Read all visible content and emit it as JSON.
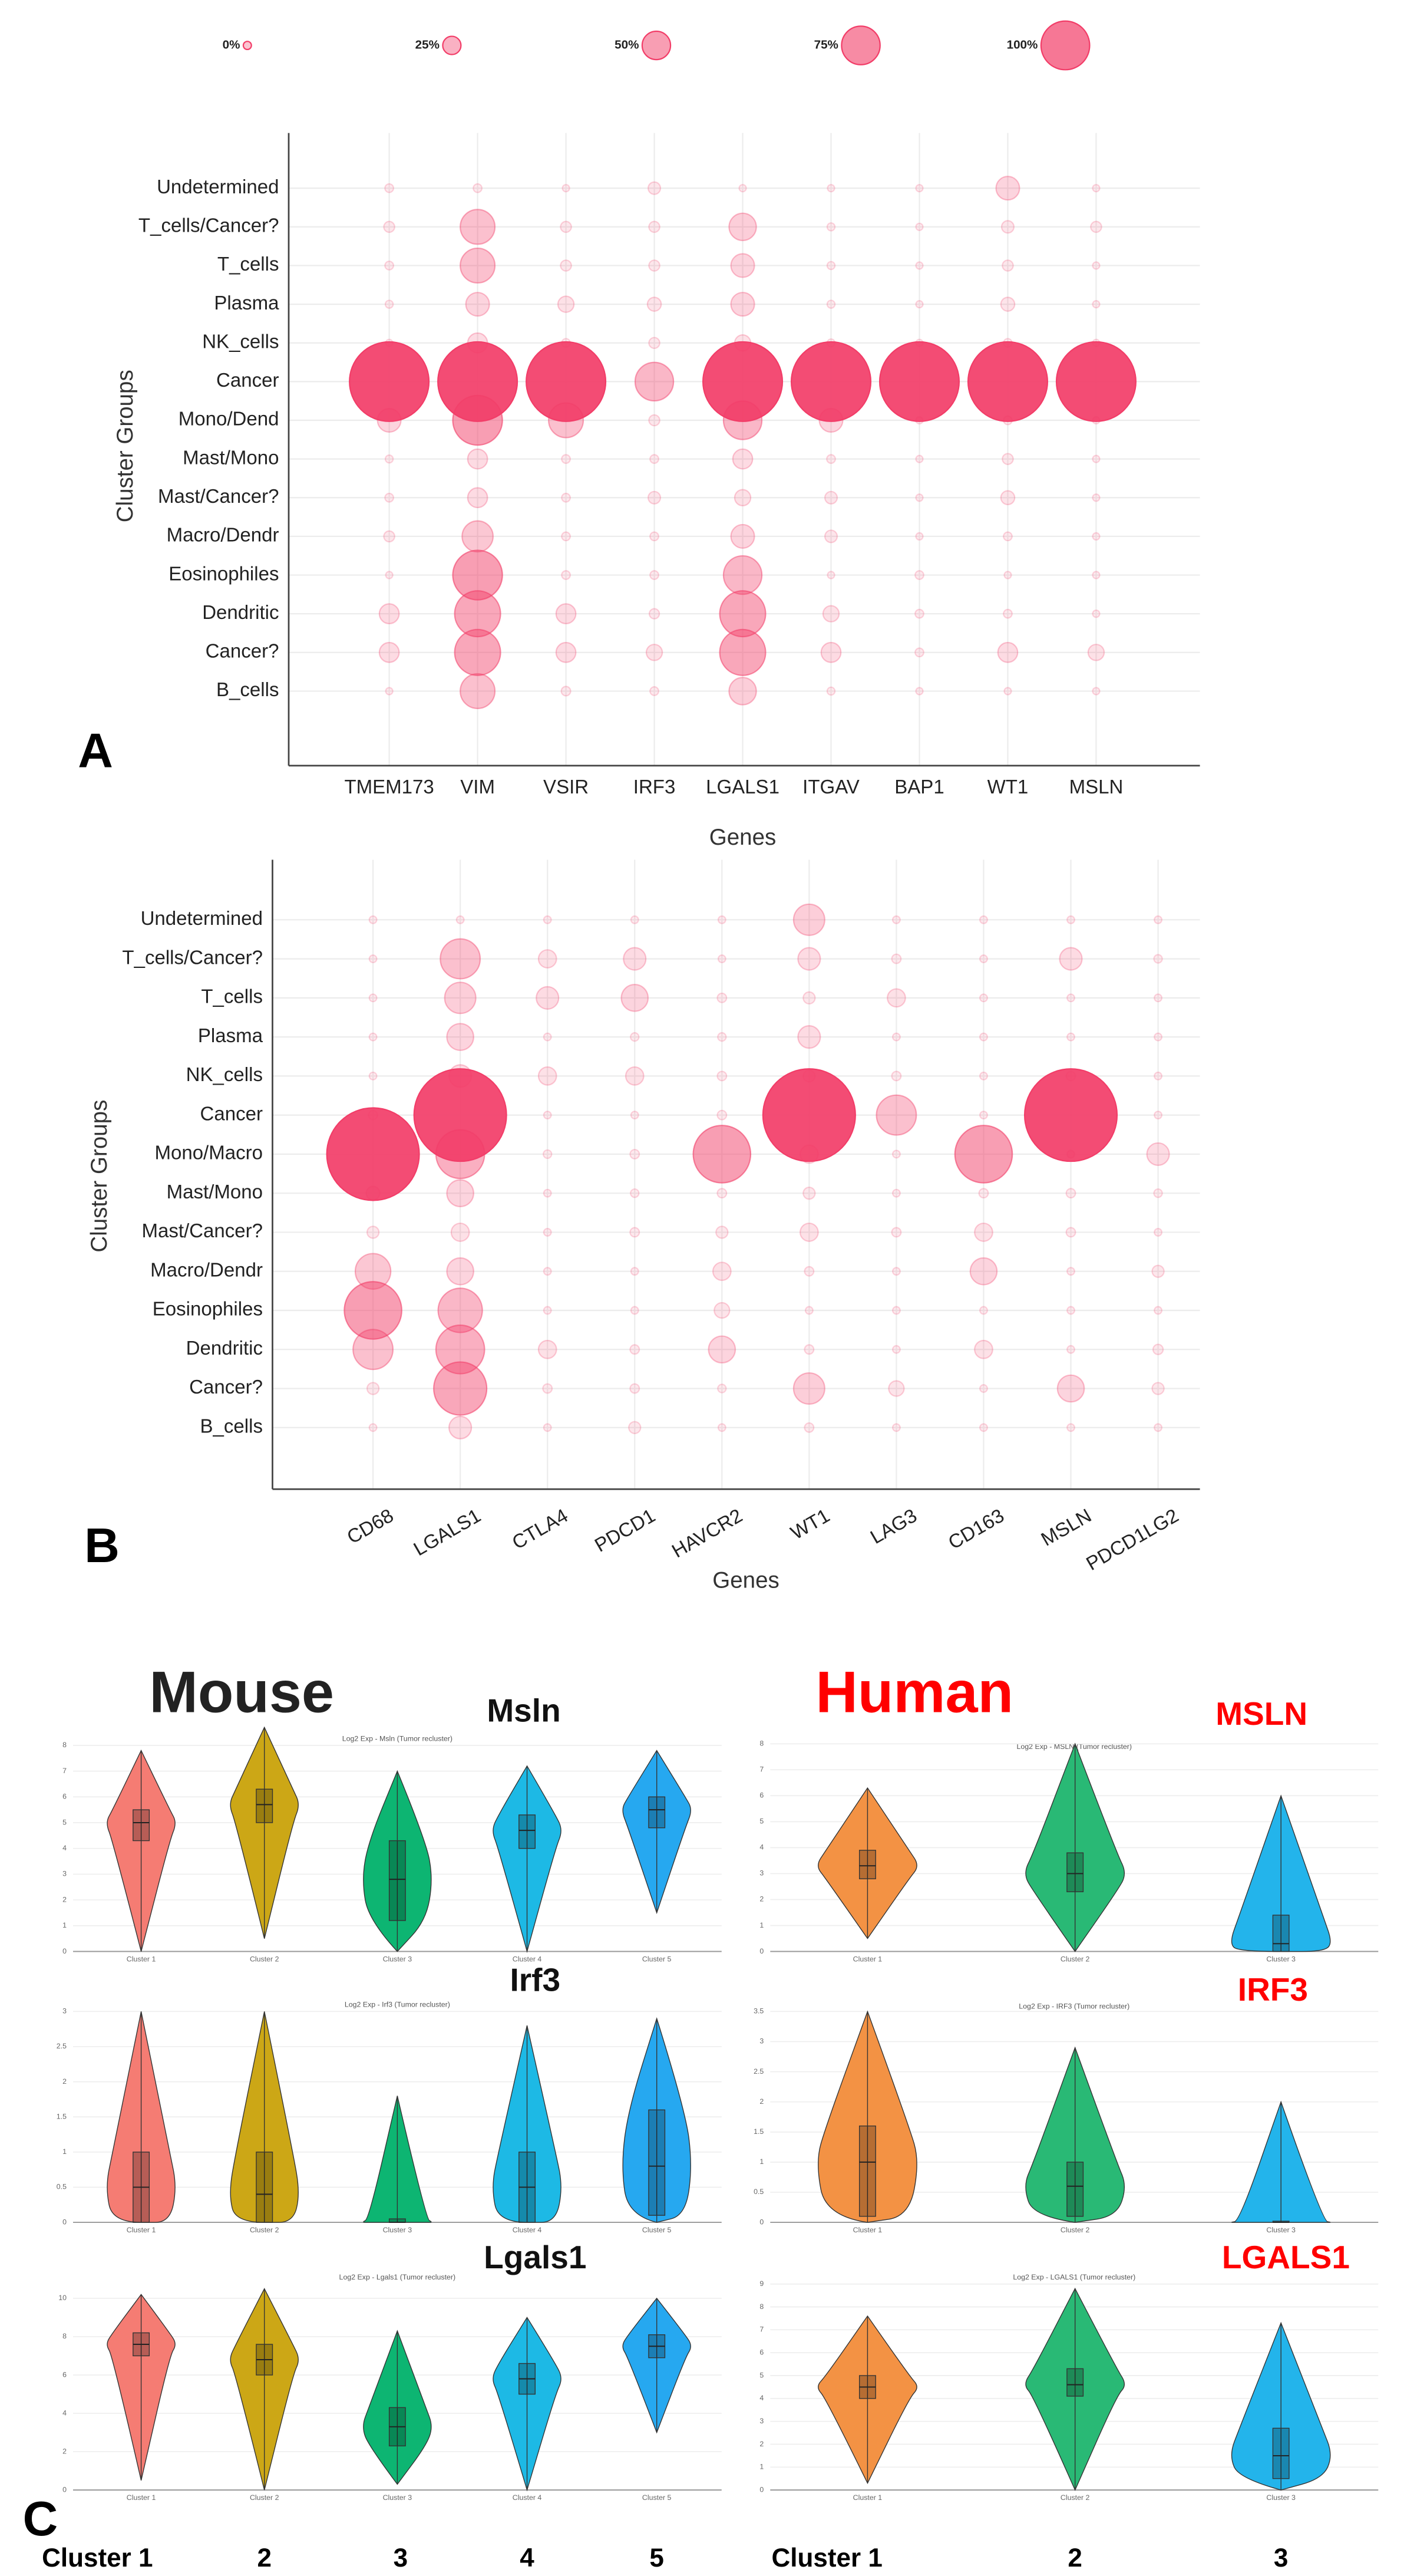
{
  "chart_data": [
    {
      "type": "dot",
      "color": "#f23d68",
      "x_label": "Genes",
      "y_label": "Cluster Groups",
      "size_legend": [
        {
          "value": 0,
          "label": "0%"
        },
        {
          "value": 25,
          "label": "25%"
        },
        {
          "value": 50,
          "label": "50%"
        },
        {
          "value": 75,
          "label": "75%"
        },
        {
          "value": 100,
          "label": "100%"
        }
      ],
      "categories": [
        "TMEM173",
        "VIM",
        "VSIR",
        "IRF3",
        "LGALS1",
        "ITGAV",
        "BAP1",
        "WT1",
        "MSLN"
      ],
      "groups": [
        "Undetermined",
        "T_cells/Cancer?",
        "T_cells",
        "Plasma",
        "NK_cells",
        "Cancer",
        "Mono/Dend",
        "Mast/Mono",
        "Mast/Cancer?",
        "Macro/Dendr",
        "Eosinophiles",
        "Dendritic",
        "Cancer?",
        "B_cells"
      ],
      "values": [
        [
          5,
          8,
          5,
          4,
          3,
          100,
          25,
          4,
          5,
          8,
          3,
          20,
          20,
          3
        ],
        [
          5,
          40,
          40,
          25,
          20,
          100,
          60,
          20,
          20,
          35,
          60,
          55,
          55,
          40
        ],
        [
          3,
          8,
          8,
          15,
          5,
          100,
          40,
          5,
          5,
          5,
          5,
          20,
          20,
          6
        ],
        [
          10,
          8,
          8,
          12,
          8,
          45,
          8,
          5,
          10,
          5,
          5,
          7,
          15,
          5
        ],
        [
          3,
          30,
          25,
          25,
          15,
          100,
          45,
          20,
          15,
          25,
          45,
          55,
          55,
          30
        ],
        [
          3,
          4,
          4,
          4,
          4,
          100,
          25,
          5,
          10,
          10,
          3,
          15,
          20,
          4
        ],
        [
          3,
          3,
          3,
          3,
          3,
          100,
          3,
          3,
          3,
          3,
          5,
          5,
          5,
          3
        ],
        [
          25,
          10,
          8,
          12,
          5,
          100,
          5,
          8,
          12,
          5,
          3,
          5,
          20,
          3
        ],
        [
          3,
          8,
          3,
          3,
          3,
          100,
          3,
          3,
          3,
          3,
          3,
          3,
          15,
          3
        ]
      ]
    },
    {
      "type": "dot",
      "color": "#f23d68",
      "x_label": "Genes",
      "y_label": "Cluster Groups",
      "categories": [
        "CD68",
        "LGALS1",
        "CTLA4",
        "PDCD1",
        "HAVCR2",
        "WT1",
        "LAG3",
        "CD163",
        "MSLN",
        "PDCD1LG2"
      ],
      "groups": [
        "Undetermined",
        "T_cells/Cancer?",
        "T_cells",
        "Plasma",
        "NK_cells",
        "Cancer",
        "Mono/Macro",
        "Mast/Mono",
        "Mast/Cancer?",
        "Macro/Dendr",
        "Eosinophiles",
        "Dendritic",
        "Cancer?",
        "B_cells"
      ],
      "values": [
        [
          3,
          3,
          3,
          3,
          3,
          5,
          100,
          10,
          8,
          35,
          60,
          40,
          8,
          3
        ],
        [
          3,
          40,
          30,
          25,
          20,
          100,
          50,
          25,
          15,
          25,
          45,
          50,
          55,
          20
        ],
        [
          3,
          15,
          20,
          3,
          15,
          3,
          4,
          3,
          3,
          3,
          3,
          15,
          5,
          3
        ],
        [
          3,
          20,
          25,
          4,
          15,
          3,
          5,
          4,
          5,
          3,
          3,
          5,
          5,
          8
        ],
        [
          3,
          3,
          5,
          4,
          5,
          5,
          60,
          5,
          8,
          15,
          12,
          25,
          4,
          3
        ],
        [
          30,
          20,
          8,
          20,
          8,
          100,
          15,
          8,
          15,
          5,
          3,
          5,
          30,
          5
        ],
        [
          3,
          5,
          15,
          3,
          5,
          40,
          3,
          3,
          5,
          3,
          3,
          3,
          12,
          3
        ],
        [
          3,
          3,
          3,
          3,
          3,
          3,
          60,
          5,
          15,
          25,
          3,
          15,
          3,
          3
        ],
        [
          3,
          20,
          3,
          3,
          5,
          100,
          3,
          5,
          5,
          3,
          3,
          3,
          25,
          3
        ],
        [
          3,
          4,
          3,
          3,
          3,
          3,
          20,
          4,
          3,
          8,
          3,
          6,
          8,
          3
        ]
      ]
    },
    {
      "type": "violin",
      "title": "Msln",
      "subtitle": "Log2 Exp - Msln (Tumor recluster)",
      "categories": [
        "Cluster 1",
        "Cluster 2",
        "Cluster 3",
        "Cluster 4",
        "Cluster 5"
      ],
      "colors": [
        "#f4756b",
        "#c9a20a",
        "#00b16a",
        "#11b5e4",
        "#1aa3ef"
      ],
      "ylim": [
        0,
        8.5
      ],
      "yticks": [
        0,
        1,
        2,
        3,
        4,
        5,
        6,
        7,
        8
      ],
      "stats": [
        {
          "min": 0,
          "q1": 4.3,
          "median": 5,
          "q3": 5.5,
          "max": 7.8
        },
        {
          "min": 0.5,
          "q1": 5,
          "median": 5.7,
          "q3": 6.3,
          "max": 8.7
        },
        {
          "min": 0,
          "q1": 1.2,
          "median": 2.8,
          "q3": 4.3,
          "max": 7
        },
        {
          "min": 0,
          "q1": 4,
          "median": 4.7,
          "q3": 5.3,
          "max": 7.2
        },
        {
          "min": 1.5,
          "q1": 4.8,
          "median": 5.5,
          "q3": 6,
          "max": 7.8
        }
      ]
    },
    {
      "type": "violin",
      "title": "MSLN",
      "subtitle": "Log2 Exp - MSLN (Tumor recluster)",
      "categories": [
        "Cluster 1",
        "Cluster 2",
        "Cluster 3"
      ],
      "colors": [
        "#f28c3a",
        "#1db56e",
        "#17b0ea"
      ],
      "ylim": [
        0,
        8.5
      ],
      "yticks": [
        0,
        1,
        2,
        3,
        4,
        5,
        6,
        7,
        8
      ],
      "stats": [
        {
          "min": 0.5,
          "q1": 2.8,
          "median": 3.3,
          "q3": 3.9,
          "max": 6.3
        },
        {
          "min": 0,
          "q1": 2.3,
          "median": 3,
          "q3": 3.8,
          "max": 8
        },
        {
          "min": 0,
          "q1": 0,
          "median": 0.3,
          "q3": 1.4,
          "max": 6
        }
      ]
    },
    {
      "type": "violin",
      "title": "Irf3",
      "subtitle": "Log2 Exp - Irf3 (Tumor recluster)",
      "categories": [
        "Cluster 1",
        "Cluster 2",
        "Cluster 3",
        "Cluster 4",
        "Cluster 5"
      ],
      "colors": [
        "#f4756b",
        "#c9a20a",
        "#00b16a",
        "#11b5e4",
        "#1aa3ef"
      ],
      "ylim": [
        0,
        3
      ],
      "yticks": [
        0,
        0.5,
        1,
        1.5,
        2,
        2.5,
        3
      ],
      "stats": [
        {
          "min": 0,
          "q1": 0,
          "median": 0.5,
          "q3": 1,
          "max": 3
        },
        {
          "min": 0,
          "q1": 0,
          "median": 0.4,
          "q3": 1,
          "max": 3
        },
        {
          "min": 0,
          "q1": 0,
          "median": 0,
          "q3": 0.05,
          "max": 1.8
        },
        {
          "min": 0,
          "q1": 0,
          "median": 0.5,
          "q3": 1,
          "max": 2.8
        },
        {
          "min": 0,
          "q1": 0.1,
          "median": 0.8,
          "q3": 1.6,
          "max": 2.9
        }
      ]
    },
    {
      "type": "violin",
      "title": "IRF3",
      "subtitle": "Log2 Exp - IRF3 (Tumor recluster)",
      "categories": [
        "Cluster 1",
        "Cluster 2",
        "Cluster 3"
      ],
      "colors": [
        "#f28c3a",
        "#1db56e",
        "#17b0ea"
      ],
      "ylim": [
        0,
        3.5
      ],
      "yticks": [
        0,
        0.5,
        1,
        1.5,
        2,
        2.5,
        3,
        3.5
      ],
      "stats": [
        {
          "min": 0,
          "q1": 0.1,
          "median": 1,
          "q3": 1.6,
          "max": 3.5
        },
        {
          "min": 0,
          "q1": 0.1,
          "median": 0.6,
          "q3": 1,
          "max": 2.9
        },
        {
          "min": 0,
          "q1": 0,
          "median": 0,
          "q3": 0.02,
          "max": 2
        }
      ]
    },
    {
      "type": "violin",
      "title": "Lgals1",
      "subtitle": "Log2 Exp - Lgals1 (Tumor recluster)",
      "categories": [
        "Cluster 1",
        "Cluster 2",
        "Cluster 3",
        "Cluster 4",
        "Cluster 5"
      ],
      "colors": [
        "#f4756b",
        "#c9a20a",
        "#00b16a",
        "#11b5e4",
        "#1aa3ef"
      ],
      "ylim": [
        0,
        11
      ],
      "yticks": [
        0,
        2,
        4,
        6,
        8,
        10
      ],
      "stats": [
        {
          "min": 0.5,
          "q1": 7,
          "median": 7.6,
          "q3": 8.2,
          "max": 10.2
        },
        {
          "min": 0,
          "q1": 6,
          "median": 6.8,
          "q3": 7.6,
          "max": 10.5
        },
        {
          "min": 0.3,
          "q1": 2.3,
          "median": 3.3,
          "q3": 4.3,
          "max": 8.3
        },
        {
          "min": 0,
          "q1": 5,
          "median": 5.8,
          "q3": 6.6,
          "max": 9
        },
        {
          "min": 3,
          "q1": 6.9,
          "median": 7.5,
          "q3": 8.1,
          "max": 10
        }
      ]
    },
    {
      "type": "violin",
      "title": "LGALS1",
      "subtitle": "Log2 Exp - LGALS1 (Tumor recluster)",
      "categories": [
        "Cluster 1",
        "Cluster 2",
        "Cluster 3"
      ],
      "colors": [
        "#f28c3a",
        "#1db56e",
        "#17b0ea"
      ],
      "ylim": [
        0,
        9
      ],
      "yticks": [
        0,
        1,
        2,
        3,
        4,
        5,
        6,
        7,
        8,
        9
      ],
      "stats": [
        {
          "min": 0.3,
          "q1": 4,
          "median": 4.5,
          "q3": 5,
          "max": 7.6
        },
        {
          "min": 0,
          "q1": 4.1,
          "median": 4.6,
          "q3": 5.3,
          "max": 8.8
        },
        {
          "min": 0,
          "q1": 0.5,
          "median": 1.5,
          "q3": 2.7,
          "max": 7.3
        }
      ]
    }
  ],
  "figure": {
    "panel_labels": [
      "A",
      "B",
      "C"
    ],
    "mouse": "Mouse",
    "human": "Human",
    "mouse_bottom_labels": [
      "Cluster 1",
      "2",
      "3",
      "4",
      "5"
    ],
    "human_bottom_labels": [
      "Cluster 1",
      "2",
      "3"
    ]
  }
}
